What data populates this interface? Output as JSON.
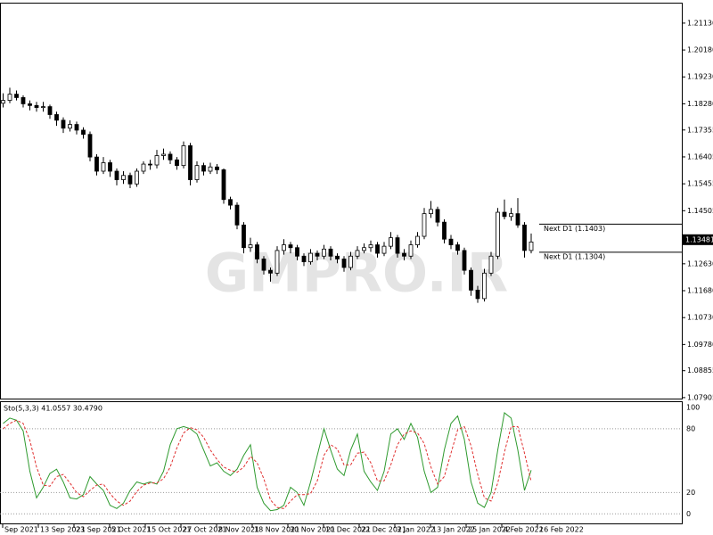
{
  "chart_data": {
    "type": "candlestick",
    "watermark": "GMPRO.IR",
    "ylim": [
      1.0787,
      1.2182
    ],
    "yticks": [
      {
        "value": 1.2113,
        "label": "1.21130"
      },
      {
        "value": 1.2018,
        "label": "1.20180"
      },
      {
        "value": 1.1923,
        "label": "1.19230"
      },
      {
        "value": 1.1828,
        "label": "1.18280"
      },
      {
        "value": 1.17355,
        "label": "1.17355"
      },
      {
        "value": 1.16405,
        "label": "1.16405"
      },
      {
        "value": 1.15455,
        "label": "1.15455"
      },
      {
        "value": 1.14505,
        "label": "1.14505"
      },
      {
        "value": 1.1263,
        "label": "1.12630"
      },
      {
        "value": 1.1168,
        "label": "1.11680"
      },
      {
        "value": 1.1073,
        "label": "1.10730"
      },
      {
        "value": 1.0978,
        "label": "1.09780"
      },
      {
        "value": 1.08855,
        "label": "1.08855"
      },
      {
        "value": 1.07905,
        "label": "1.07905"
      }
    ],
    "current_price": {
      "value": 1.13481,
      "label": "1.13481"
    },
    "levels": [
      {
        "value": 1.1403,
        "label": "Next D1 (1.1403)"
      },
      {
        "value": 1.1304,
        "label": "Next D1 (1.1304)"
      }
    ],
    "xticks": [
      "Sep 2021",
      "13 Sep 2021",
      "23 Sep 2021",
      "5 Oct 2021",
      "15 Oct 2021",
      "27 Oct 2021",
      "8 Nov 2021",
      "18 Nov 2021",
      "30 Nov 2021",
      "10 Dec 2021",
      "22 Dec 2021",
      "3 Jan 2022",
      "13 Jan 2022",
      "25 Jan 2022",
      "4 Feb 2022",
      "16 Feb 2022"
    ],
    "ohlc": [
      [
        1.183,
        1.1865,
        1.1815,
        1.184
      ],
      [
        1.184,
        1.1885,
        1.183,
        1.1862
      ],
      [
        1.1862,
        1.1875,
        1.184,
        1.185
      ],
      [
        1.185,
        1.1858,
        1.1815,
        1.1828
      ],
      [
        1.1828,
        1.184,
        1.1805,
        1.1822
      ],
      [
        1.1822,
        1.1835,
        1.18,
        1.1815
      ],
      [
        1.1815,
        1.1835,
        1.18,
        1.1818
      ],
      [
        1.1818,
        1.1825,
        1.1775,
        1.179
      ],
      [
        1.179,
        1.18,
        1.175,
        1.177
      ],
      [
        1.177,
        1.178,
        1.1725,
        1.1742
      ],
      [
        1.1742,
        1.177,
        1.173,
        1.1755
      ],
      [
        1.1755,
        1.1765,
        1.172,
        1.1735
      ],
      [
        1.1735,
        1.1745,
        1.1705,
        1.172
      ],
      [
        1.172,
        1.173,
        1.1625,
        1.164
      ],
      [
        1.164,
        1.165,
        1.1575,
        1.159
      ],
      [
        1.159,
        1.164,
        1.158,
        1.162
      ],
      [
        1.162,
        1.163,
        1.157,
        1.159
      ],
      [
        1.159,
        1.16,
        1.154,
        1.156
      ],
      [
        1.156,
        1.159,
        1.1545,
        1.1575
      ],
      [
        1.1575,
        1.1585,
        1.153,
        1.1545
      ],
      [
        1.1545,
        1.16,
        1.1535,
        1.159
      ],
      [
        1.159,
        1.1625,
        1.158,
        1.1615
      ],
      [
        1.1615,
        1.163,
        1.1595,
        1.1612
      ],
      [
        1.1612,
        1.1665,
        1.16,
        1.1645
      ],
      [
        1.1645,
        1.167,
        1.163,
        1.165
      ],
      [
        1.165,
        1.166,
        1.1615,
        1.163
      ],
      [
        1.163,
        1.164,
        1.1595,
        1.161
      ],
      [
        1.161,
        1.1695,
        1.16,
        1.168
      ],
      [
        1.168,
        1.169,
        1.154,
        1.156
      ],
      [
        1.156,
        1.1625,
        1.155,
        1.161
      ],
      [
        1.161,
        1.162,
        1.1575,
        1.159
      ],
      [
        1.159,
        1.162,
        1.158,
        1.1605
      ],
      [
        1.1605,
        1.1615,
        1.158,
        1.1595
      ],
      [
        1.1595,
        1.16,
        1.1475,
        1.149
      ],
      [
        1.149,
        1.15,
        1.1455,
        1.147
      ],
      [
        1.147,
        1.148,
        1.1385,
        1.14
      ],
      [
        1.14,
        1.141,
        1.13,
        1.132
      ],
      [
        1.132,
        1.1355,
        1.1305,
        1.133
      ],
      [
        1.133,
        1.134,
        1.1265,
        1.128
      ],
      [
        1.128,
        1.129,
        1.1225,
        1.124
      ],
      [
        1.124,
        1.125,
        1.12,
        1.123
      ],
      [
        1.123,
        1.1325,
        1.122,
        1.131
      ],
      [
        1.131,
        1.135,
        1.1295,
        1.133
      ],
      [
        1.133,
        1.134,
        1.13,
        1.132
      ],
      [
        1.132,
        1.133,
        1.1275,
        1.129
      ],
      [
        1.129,
        1.13,
        1.1255,
        1.127
      ],
      [
        1.127,
        1.1315,
        1.126,
        1.13
      ],
      [
        1.13,
        1.131,
        1.1275,
        1.129
      ],
      [
        1.129,
        1.133,
        1.128,
        1.1315
      ],
      [
        1.1315,
        1.1325,
        1.1275,
        1.129
      ],
      [
        1.129,
        1.13,
        1.1265,
        1.128
      ],
      [
        1.128,
        1.129,
        1.1235,
        1.125
      ],
      [
        1.125,
        1.1305,
        1.124,
        1.129
      ],
      [
        1.129,
        1.1325,
        1.128,
        1.131
      ],
      [
        1.131,
        1.1335,
        1.13,
        1.132
      ],
      [
        1.132,
        1.1345,
        1.1305,
        1.133
      ],
      [
        1.133,
        1.134,
        1.1285,
        1.13
      ],
      [
        1.13,
        1.134,
        1.129,
        1.1325
      ],
      [
        1.1325,
        1.1375,
        1.1315,
        1.1355
      ],
      [
        1.1355,
        1.1365,
        1.1285,
        1.13
      ],
      [
        1.13,
        1.1315,
        1.1275,
        1.129
      ],
      [
        1.129,
        1.1345,
        1.128,
        1.133
      ],
      [
        1.133,
        1.1375,
        1.132,
        1.136
      ],
      [
        1.136,
        1.146,
        1.135,
        1.144
      ],
      [
        1.144,
        1.1485,
        1.1425,
        1.1455
      ],
      [
        1.1455,
        1.1465,
        1.1395,
        1.141
      ],
      [
        1.141,
        1.142,
        1.1335,
        1.135
      ],
      [
        1.135,
        1.1365,
        1.1315,
        1.133
      ],
      [
        1.133,
        1.134,
        1.1295,
        1.131
      ],
      [
        1.131,
        1.132,
        1.1225,
        1.124
      ],
      [
        1.124,
        1.125,
        1.115,
        1.117
      ],
      [
        1.117,
        1.1185,
        1.1125,
        1.114
      ],
      [
        1.114,
        1.1245,
        1.113,
        1.123
      ],
      [
        1.123,
        1.1305,
        1.122,
        1.129
      ],
      [
        1.129,
        1.146,
        1.128,
        1.1445
      ],
      [
        1.1445,
        1.149,
        1.142,
        1.143
      ],
      [
        1.143,
        1.146,
        1.1415,
        1.144
      ],
      [
        1.144,
        1.1495,
        1.139,
        1.14
      ],
      [
        1.14,
        1.141,
        1.1285,
        1.131
      ],
      [
        1.131,
        1.137,
        1.13,
        1.134
      ]
    ],
    "indicator": {
      "type": "line",
      "label": "Sto(5,3,3) 41.0557 30.4790",
      "ylim": [
        -9,
        105
      ],
      "yticks": [
        0,
        20,
        80,
        100
      ],
      "series": [
        {
          "color": "#2e9a2e",
          "values": [
            85,
            90,
            88,
            78,
            40,
            15,
            25,
            38,
            42,
            30,
            15,
            14,
            18,
            35,
            28,
            22,
            8,
            5,
            10,
            22,
            30,
            28,
            30,
            28,
            40,
            65,
            80,
            82,
            80,
            75,
            60,
            45,
            48,
            40,
            36,
            42,
            55,
            65,
            25,
            10,
            3,
            4,
            8,
            25,
            20,
            8,
            30,
            55,
            80,
            60,
            42,
            36,
            60,
            75,
            40,
            30,
            22,
            40,
            75,
            80,
            70,
            85,
            72,
            40,
            20,
            25,
            60,
            85,
            92,
            70,
            30,
            10,
            6,
            20,
            60,
            95,
            90,
            60,
            22,
            41.0557
          ]
        },
        {
          "color": "#e03030",
          "values": [
            80,
            85,
            88,
            85,
            69,
            44,
            27,
            26,
            35,
            37,
            29,
            20,
            16,
            22,
            27,
            28,
            19,
            12,
            8,
            12,
            21,
            27,
            29,
            29,
            33,
            44,
            62,
            76,
            81,
            79,
            72,
            60,
            51,
            44,
            41,
            39,
            44,
            54,
            48,
            33,
            13,
            6,
            5,
            12,
            18,
            18,
            19,
            31,
            55,
            65,
            61,
            46,
            46,
            57,
            58,
            48,
            31,
            31,
            46,
            65,
            75,
            78,
            76,
            66,
            44,
            28,
            35,
            57,
            79,
            82,
            64,
            37,
            15,
            12,
            29,
            58,
            82,
            82,
            57,
            30.479
          ]
        }
      ]
    }
  }
}
